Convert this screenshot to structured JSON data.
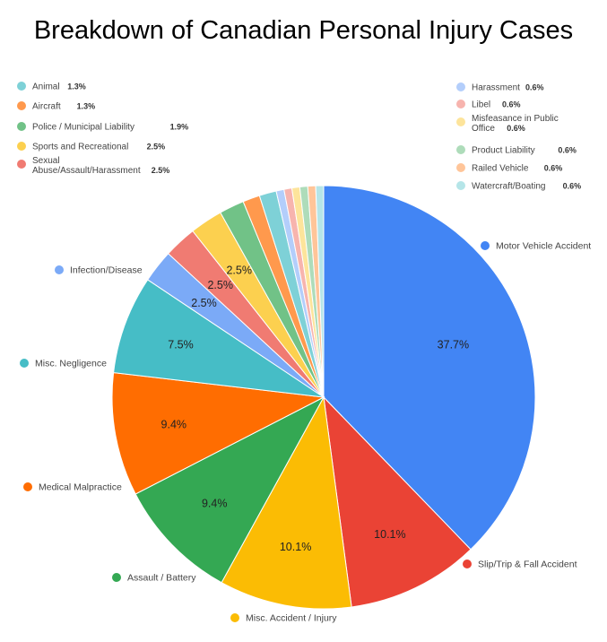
{
  "chart_data": {
    "type": "pie",
    "title": "Breakdown of Canadian Personal Injury Cases",
    "slices": [
      {
        "label": "Motor Vehicle Accident",
        "value": 37.7,
        "display": "37.7%",
        "color": "#4285f4"
      },
      {
        "label": "Slip/Trip & Fall Accident",
        "value": 10.1,
        "display": "10.1%",
        "color": "#ea4335"
      },
      {
        "label": "Misc. Accident / Injury",
        "value": 10.1,
        "display": "10.1%",
        "color": "#fbbc04"
      },
      {
        "label": "Assault / Battery",
        "value": 9.4,
        "display": "9.4%",
        "color": "#34a853"
      },
      {
        "label": "Medical Malpractice",
        "value": 9.4,
        "display": "9.4%",
        "color": "#ff6d01"
      },
      {
        "label": "Misc. Negligence",
        "value": 7.5,
        "display": "7.5%",
        "color": "#46bdc6"
      },
      {
        "label": "Infection/Disease",
        "value": 2.5,
        "display": "2.5%",
        "color": "#7baaf7"
      },
      {
        "label": "Sexual Abuse/Assault/Harassment",
        "value": 2.5,
        "display": "2.5%",
        "color": "#f07b72"
      },
      {
        "label": "Sports and Recreational",
        "value": 2.5,
        "display": "2.5%",
        "color": "#fcd04f"
      },
      {
        "label": "Police / Municipal Liability",
        "value": 1.9,
        "display": "1.9%",
        "color": "#71c287"
      },
      {
        "label": "Aircraft",
        "value": 1.3,
        "display": "1.3%",
        "color": "#ff994d"
      },
      {
        "label": "Animal",
        "value": 1.3,
        "display": "1.3%",
        "color": "#7ed1d7"
      },
      {
        "label": "Harassment",
        "value": 0.6,
        "display": "0.6%",
        "color": "#b3cefb"
      },
      {
        "label": "Libel",
        "value": 0.6,
        "display": "0.6%",
        "color": "#f7b4ae"
      },
      {
        "label": "Misfeasance in Public Office",
        "value": 0.6,
        "display": "0.6%",
        "color": "#fde49b"
      },
      {
        "label": "Product Liability",
        "value": 0.6,
        "display": "0.6%",
        "color": "#aedcba"
      },
      {
        "label": "Railed Vehicle",
        "value": 0.6,
        "display": "0.6%",
        "color": "#ffc599"
      },
      {
        "label": "Watercraft/Boating",
        "value": 0.6,
        "display": "0.6%",
        "color": "#b5e5e8"
      }
    ]
  }
}
